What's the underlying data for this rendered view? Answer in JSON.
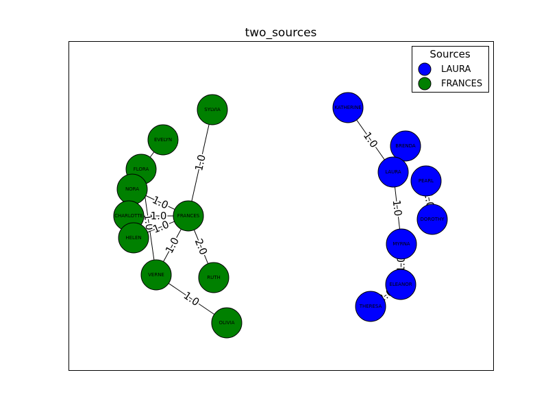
{
  "title": "two_sources",
  "legend": {
    "title": "Sources",
    "items": [
      {
        "label": "LAURA",
        "color": "#0000ff"
      },
      {
        "label": "FRANCES",
        "color": "#008000"
      }
    ]
  },
  "colors": {
    "LAURA": "#0000ff",
    "FRANCES": "#008000"
  },
  "nodes": [
    {
      "id": "SYLVIA",
      "label": "SYLVIA",
      "group": "FRANCES"
    },
    {
      "id": "EVELYN",
      "label": "EVELYN",
      "group": "FRANCES"
    },
    {
      "id": "FLORA",
      "label": "FLORA",
      "group": "FRANCES"
    },
    {
      "id": "NORA",
      "label": "NORA",
      "group": "FRANCES"
    },
    {
      "id": "CHARLOTTE",
      "label": "CHARLOTTE",
      "group": "FRANCES"
    },
    {
      "id": "HELEN",
      "label": "HELEN",
      "group": "FRANCES"
    },
    {
      "id": "FRANCES",
      "label": "FRANCES",
      "group": "FRANCES"
    },
    {
      "id": "VERNE",
      "label": "VERNE",
      "group": "FRANCES"
    },
    {
      "id": "RUTH",
      "label": "RUTH",
      "group": "FRANCES"
    },
    {
      "id": "OLIVIA",
      "label": "OLIVIA",
      "group": "FRANCES"
    },
    {
      "id": "KATHERINE",
      "label": "KATHERINE",
      "group": "LAURA"
    },
    {
      "id": "BRENDA",
      "label": "BRENDA",
      "group": "LAURA"
    },
    {
      "id": "LAURA",
      "label": "LAURA",
      "group": "LAURA"
    },
    {
      "id": "PEARL",
      "label": "PEARL",
      "group": "LAURA"
    },
    {
      "id": "DOROTHY",
      "label": "DOROTHY",
      "group": "LAURA"
    },
    {
      "id": "MYRNA",
      "label": "MYRNA",
      "group": "LAURA"
    },
    {
      "id": "ELEANOR",
      "label": "ELEANOR",
      "group": "LAURA"
    },
    {
      "id": "THERESA",
      "label": "THERESA",
      "group": "LAURA"
    }
  ],
  "edges": [
    {
      "source": "SYLVIA",
      "target": "FRANCES",
      "label": "1.0"
    },
    {
      "source": "EVELYN",
      "target": "FLORA",
      "label": ""
    },
    {
      "source": "FLORA",
      "target": "VERNE",
      "label": "1.0"
    },
    {
      "source": "NORA",
      "target": "FRANCES",
      "label": "1.0"
    },
    {
      "source": "NORA",
      "target": "HELEN",
      "label": "1.0"
    },
    {
      "source": "CHARLOTTE",
      "target": "FRANCES",
      "label": "1.0"
    },
    {
      "source": "HELEN",
      "target": "FRANCES",
      "label": "1.0"
    },
    {
      "source": "FRANCES",
      "target": "VERNE",
      "label": "1.0"
    },
    {
      "source": "FRANCES",
      "target": "RUTH",
      "label": "2.0"
    },
    {
      "source": "VERNE",
      "target": "OLIVIA",
      "label": "1.0"
    },
    {
      "source": "KATHERINE",
      "target": "LAURA",
      "label": "1.0"
    },
    {
      "source": "LAURA",
      "target": "MYRNA",
      "label": "1.0"
    },
    {
      "source": "PEARL",
      "target": "DOROTHY",
      "label": "1.0"
    },
    {
      "source": "MYRNA",
      "target": "ELEANOR",
      "label": "1.0"
    },
    {
      "source": "ELEANOR",
      "target": "THERESA",
      "label": "2.0"
    }
  ]
}
